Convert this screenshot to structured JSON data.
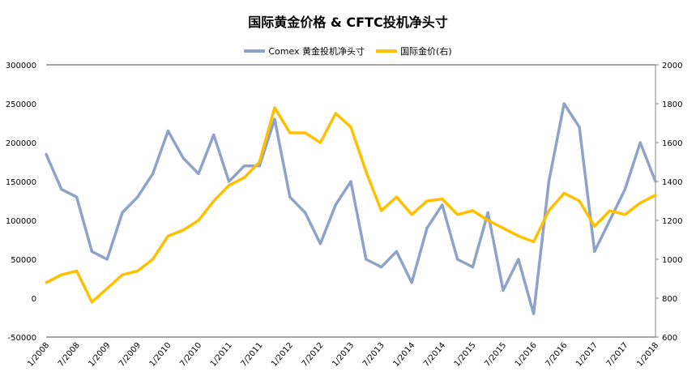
{
  "chart_data": {
    "type": "line",
    "title": "国际黄金价格 & CFTC投机净头寸",
    "legend_position": "top",
    "grid": false,
    "x": [
      "2008-01",
      "2008-04",
      "2008-07",
      "2008-10",
      "2009-01",
      "2009-04",
      "2009-07",
      "2009-10",
      "2010-01",
      "2010-04",
      "2010-07",
      "2010-10",
      "2011-01",
      "2011-04",
      "2011-07",
      "2011-10",
      "2012-01",
      "2012-04",
      "2012-07",
      "2012-10",
      "2013-01",
      "2013-04",
      "2013-07",
      "2013-10",
      "2014-01",
      "2014-04",
      "2014-07",
      "2014-10",
      "2015-01",
      "2015-04",
      "2015-07",
      "2015-10",
      "2016-01",
      "2016-04",
      "2016-07",
      "2016-10",
      "2017-01",
      "2017-04",
      "2017-07",
      "2017-10",
      "2018-01"
    ],
    "x_tick_labels": [
      "1/2008",
      "7/2008",
      "1/2009",
      "7/2009",
      "1/2010",
      "7/2010",
      "1/2011",
      "7/2011",
      "1/2012",
      "7/2012",
      "1/2013",
      "7/2013",
      "1/2014",
      "7/2014",
      "1/2015",
      "7/2015",
      "1/2016",
      "7/2016",
      "1/2017",
      "7/2017",
      "1/2018"
    ],
    "y_left": {
      "range": [
        -50000,
        300000
      ],
      "ticks": [
        "-50000",
        "0",
        "50000",
        "100000",
        "150000",
        "200000",
        "250000",
        "300000"
      ]
    },
    "y_right": {
      "range": [
        600,
        2000
      ],
      "ticks": [
        "600",
        "800",
        "1000",
        "1200",
        "1400",
        "1600",
        "1800",
        "2000"
      ]
    },
    "series": [
      {
        "name": "Comex 黄金投机净头寸",
        "axis": "left",
        "color": "#8FA3C8",
        "values": [
          185000,
          140000,
          130000,
          60000,
          50000,
          110000,
          130000,
          160000,
          215000,
          180000,
          160000,
          210000,
          150000,
          170000,
          170000,
          230000,
          130000,
          110000,
          70000,
          120000,
          150000,
          50000,
          40000,
          60000,
          20000,
          90000,
          120000,
          50000,
          40000,
          110000,
          10000,
          50000,
          -20000,
          150000,
          250000,
          220000,
          60000,
          100000,
          140000,
          200000,
          150000
        ]
      },
      {
        "name": "国际金价(右)",
        "axis": "right",
        "color": "#FFC000",
        "values": [
          880,
          920,
          940,
          780,
          850,
          920,
          940,
          1000,
          1120,
          1150,
          1200,
          1300,
          1380,
          1420,
          1500,
          1780,
          1650,
          1650,
          1600,
          1750,
          1680,
          1450,
          1250,
          1320,
          1230,
          1300,
          1310,
          1230,
          1250,
          1200,
          1160,
          1120,
          1090,
          1250,
          1340,
          1300,
          1170,
          1250,
          1230,
          1290,
          1330
        ]
      }
    ]
  }
}
